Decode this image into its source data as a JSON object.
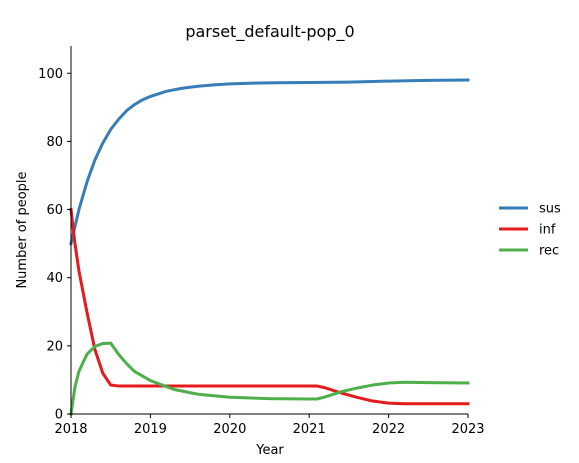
{
  "chart_data": {
    "type": "line",
    "title": "parset_default-pop_0",
    "xlabel": "Year",
    "ylabel": "Number of people",
    "xlim": [
      2018,
      2023
    ],
    "ylim": [
      0,
      108
    ],
    "xticks": [
      2018,
      2019,
      2020,
      2021,
      2022,
      2023
    ],
    "yticks": [
      0,
      20,
      40,
      60,
      80,
      100
    ],
    "grid": false,
    "legend_position": "right",
    "series": [
      {
        "name": "sus",
        "color": "#377eb8",
        "x": [
          2018.0,
          2018.1,
          2018.2,
          2018.3,
          2018.4,
          2018.5,
          2018.6,
          2018.7,
          2018.8,
          2018.9,
          2019.0,
          2019.2,
          2019.4,
          2019.6,
          2019.8,
          2020.0,
          2020.3,
          2020.6,
          2021.0,
          2021.5,
          2022.0,
          2022.5,
          2023.0
        ],
        "y": [
          50.0,
          60.0,
          68.0,
          74.5,
          79.5,
          83.5,
          86.5,
          89.0,
          90.8,
          92.2,
          93.2,
          94.7,
          95.6,
          96.2,
          96.6,
          96.9,
          97.1,
          97.2,
          97.3,
          97.4,
          97.7,
          97.9,
          98.0
        ]
      },
      {
        "name": "inf",
        "color": "#e41a1c",
        "x": [
          2018.0,
          2018.05,
          2018.1,
          2018.2,
          2018.3,
          2018.4,
          2018.5,
          2018.6,
          2019.0,
          2019.5,
          2020.0,
          2020.5,
          2021.0,
          2021.1,
          2021.2,
          2021.4,
          2021.6,
          2021.8,
          2022.0,
          2022.2,
          2022.5,
          2023.0
        ],
        "y": [
          60.0,
          50.0,
          42.0,
          30.0,
          19.0,
          12.0,
          8.5,
          8.2,
          8.2,
          8.2,
          8.2,
          8.2,
          8.2,
          8.2,
          7.7,
          6.2,
          4.9,
          3.8,
          3.2,
          3.0,
          3.0,
          3.0
        ]
      },
      {
        "name": "rec",
        "color": "#4daf4a",
        "x": [
          2018.0,
          2018.05,
          2018.1,
          2018.2,
          2018.3,
          2018.4,
          2018.5,
          2018.6,
          2018.7,
          2018.8,
          2019.0,
          2019.3,
          2019.6,
          2020.0,
          2020.5,
          2021.0,
          2021.1,
          2021.2,
          2021.4,
          2021.6,
          2021.8,
          2022.0,
          2022.2,
          2022.5,
          2023.0
        ],
        "y": [
          0.0,
          8.0,
          12.5,
          17.5,
          19.8,
          20.7,
          20.8,
          17.5,
          14.8,
          12.5,
          9.8,
          7.2,
          5.8,
          4.9,
          4.5,
          4.4,
          4.4,
          5.0,
          6.5,
          7.6,
          8.5,
          9.1,
          9.3,
          9.2,
          9.1
        ]
      }
    ]
  }
}
